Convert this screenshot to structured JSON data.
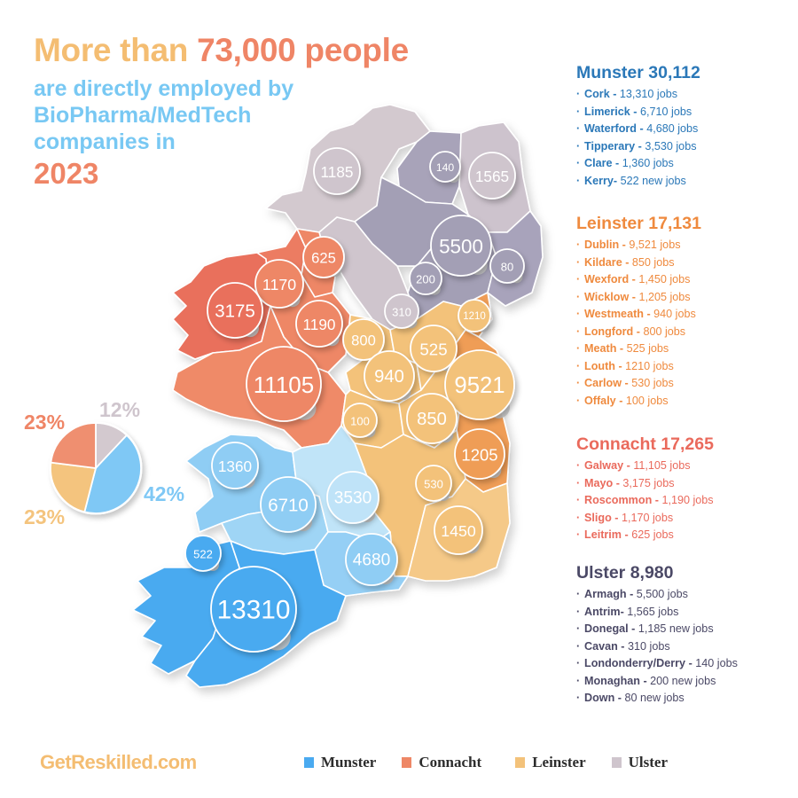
{
  "headline": {
    "line1_prefix": "More than ",
    "line1_highlight": "73,000 people",
    "line2": "are directly employed by",
    "line3": "BioPharma/MedTech",
    "line4": "companies in",
    "year": "2023"
  },
  "colors": {
    "munster": "#4aaaf0",
    "munster_light": "#8fcdf4",
    "munster_pale": "#bfe3f8",
    "connacht": "#ee8766",
    "connacht_dark": "#e9705c",
    "leinster": "#f3c27a",
    "leinster_dark": "#ef9d56",
    "ulster": "#cfc5cd",
    "ulster_dark": "#a39fb5",
    "accent_orange": "#f4bd72",
    "accent_coral": "#ef8566",
    "accent_blue": "#78c8f3"
  },
  "provinces": [
    {
      "id": "munster",
      "title": "Munster 30,112",
      "counties": [
        {
          "name": "Cork",
          "sep": " - ",
          "value": "13,310 jobs"
        },
        {
          "name": "Limerick",
          "sep": " - ",
          "value": "6,710 jobs"
        },
        {
          "name": "Waterford",
          "sep": " - ",
          "value": "4,680 jobs"
        },
        {
          "name": "Tipperary",
          "sep": " - ",
          "value": "3,530 jobs"
        },
        {
          "name": "Clare",
          "sep": " - ",
          "value": "1,360 jobs"
        },
        {
          "name": "Kerry",
          "sep": "- ",
          "value": "522 new jobs"
        }
      ]
    },
    {
      "id": "leinster",
      "title": "Leinster 17,131",
      "counties": [
        {
          "name": "Dublin",
          "sep": " - ",
          "value": "9,521 jobs"
        },
        {
          "name": "Kildare",
          "sep": " - ",
          "value": "850 jobs"
        },
        {
          "name": "Wexford",
          "sep": " - ",
          "value": "1,450 jobs"
        },
        {
          "name": "Wicklow",
          "sep": " - ",
          "value": "1,205 jobs"
        },
        {
          "name": "Westmeath",
          "sep": " - ",
          "value": "940 jobs"
        },
        {
          "name": "Longford",
          "sep": " - ",
          "value": "800 jobs"
        },
        {
          "name": "Meath",
          "sep": " - ",
          "value": "525 jobs"
        },
        {
          "name": "Louth",
          "sep": " - ",
          "value": "1210 jobs"
        },
        {
          "name": "Carlow",
          "sep": " - ",
          "value": "530 jobs"
        },
        {
          "name": "Offaly",
          "sep": " - ",
          "value": "100 jobs"
        }
      ]
    },
    {
      "id": "connacht",
      "title": "Connacht 17,265",
      "counties": [
        {
          "name": "Galway",
          "sep": " - ",
          "value": "11,105 jobs"
        },
        {
          "name": "Mayo",
          "sep": " - ",
          "value": "3,175 jobs"
        },
        {
          "name": "Roscommon",
          "sep": " - ",
          "value": "1,190 jobs"
        },
        {
          "name": "Sligo",
          "sep": " - ",
          "value": "1,170 jobs"
        },
        {
          "name": "Leitrim",
          "sep": " - ",
          "value": "625 jobs"
        }
      ]
    },
    {
      "id": "ulster",
      "title": "Ulster 8,980",
      "counties": [
        {
          "name": "Armagh",
          "sep": " - ",
          "value": "5,500 jobs"
        },
        {
          "name": "Antrim",
          "sep": "- ",
          "value": "1,565 jobs"
        },
        {
          "name": "Donegal",
          "sep": " - ",
          "value": "1,185 new jobs"
        },
        {
          "name": "Cavan",
          "sep": " - ",
          "value": "310 jobs"
        },
        {
          "name": "Londonderry/Derry",
          "sep": " - ",
          "value": "140 jobs"
        },
        {
          "name": "Monaghan",
          "sep": " - ",
          "value": "200 new jobs"
        },
        {
          "name": "Down",
          "sep": " - ",
          "value": "80 new jobs"
        }
      ]
    }
  ],
  "bubbles": [
    {
      "county": "Donegal",
      "label": "1185",
      "province": "ulster"
    },
    {
      "county": "Londonderry/Derry",
      "label": "140",
      "province": "ulster_dark"
    },
    {
      "county": "Antrim",
      "label": "1565",
      "province": "ulster"
    },
    {
      "county": "Armagh",
      "label": "5500",
      "province": "ulster_dark"
    },
    {
      "county": "Down",
      "label": "80",
      "province": "ulster_dark"
    },
    {
      "county": "Monaghan",
      "label": "200",
      "province": "ulster_dark"
    },
    {
      "county": "Cavan",
      "label": "310",
      "province": "ulster"
    },
    {
      "county": "Leitrim",
      "label": "625",
      "province": "connacht"
    },
    {
      "county": "Sligo",
      "label": "1170",
      "province": "connacht"
    },
    {
      "county": "Mayo",
      "label": "3175",
      "province": "connacht_dark"
    },
    {
      "county": "Roscommon",
      "label": "1190",
      "province": "connacht"
    },
    {
      "county": "Galway",
      "label": "11105",
      "province": "connacht"
    },
    {
      "county": "Louth",
      "label": "1210",
      "province": "leinster"
    },
    {
      "county": "Longford",
      "label": "800",
      "province": "leinster"
    },
    {
      "county": "Meath",
      "label": "525",
      "province": "leinster"
    },
    {
      "county": "Westmeath",
      "label": "940",
      "province": "leinster"
    },
    {
      "county": "Dublin",
      "label": "9521",
      "province": "leinster"
    },
    {
      "county": "Offaly",
      "label": "100",
      "province": "leinster"
    },
    {
      "county": "Kildare",
      "label": "850",
      "province": "leinster"
    },
    {
      "county": "Wicklow",
      "label": "1205",
      "province": "leinster_dark"
    },
    {
      "county": "Carlow",
      "label": "530",
      "province": "leinster"
    },
    {
      "county": "Wexford",
      "label": "1450",
      "province": "leinster"
    },
    {
      "county": "Clare",
      "label": "1360",
      "province": "munster_light"
    },
    {
      "county": "Limerick",
      "label": "6710",
      "province": "munster_light"
    },
    {
      "county": "Tipperary",
      "label": "3530",
      "province": "munster_pale"
    },
    {
      "county": "Kerry",
      "label": "522",
      "province": "munster"
    },
    {
      "county": "Waterford",
      "label": "4680",
      "province": "munster_light"
    },
    {
      "county": "Cork",
      "label": "13310",
      "province": "munster"
    }
  ],
  "chart_data": {
    "type": "pie",
    "title": "",
    "start": "top",
    "direction": "clockwise",
    "slices": [
      {
        "name": "Ulster",
        "value": 12,
        "label": "12%",
        "color": "#d3c9cf"
      },
      {
        "name": "Munster",
        "value": 42,
        "label": "42%",
        "color": "#7fc8f5"
      },
      {
        "name": "Leinster",
        "value": 23,
        "label": "23%",
        "color": "#f4c47e"
      },
      {
        "name": "Connacht",
        "value": 23,
        "label": "23%",
        "color": "#ef8f70"
      }
    ]
  },
  "footer": {
    "brand": "GetReskilled.com",
    "legend": [
      {
        "label": "Munster",
        "color": "#4aaaf0"
      },
      {
        "label": "Connacht",
        "color": "#ee8766"
      },
      {
        "label": "Leinster",
        "color": "#f3c27a"
      },
      {
        "label": "Ulster",
        "color": "#cfc5cd"
      }
    ]
  }
}
